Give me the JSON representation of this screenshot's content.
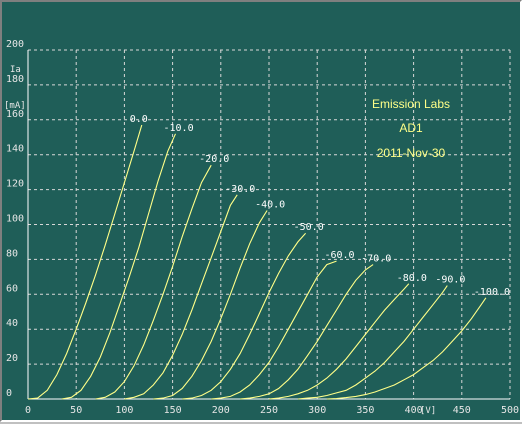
{
  "chart_data": {
    "type": "line",
    "xlim": [
      0,
      500
    ],
    "ylim": [
      0,
      200
    ],
    "x_ticks": [
      0,
      50,
      100,
      150,
      200,
      250,
      300,
      350,
      400,
      450,
      500
    ],
    "y_ticks": [
      0,
      20,
      40,
      60,
      80,
      100,
      120,
      140,
      160,
      180,
      200
    ],
    "x_unit": "[V]",
    "y_name": "Ia",
    "y_unit": "[mA]",
    "grid": true,
    "annotations": [
      "Emission Labs",
      "AD1",
      "2011-Nov-30"
    ],
    "series": [
      {
        "name": "0.0",
        "points": [
          [
            0,
            0
          ],
          [
            10,
            0.5
          ],
          [
            20,
            5
          ],
          [
            30,
            14
          ],
          [
            40,
            26
          ],
          [
            50,
            40
          ],
          [
            60,
            55
          ],
          [
            70,
            71
          ],
          [
            80,
            88
          ],
          [
            90,
            106
          ],
          [
            100,
            124
          ],
          [
            110,
            142
          ],
          [
            118,
            157
          ]
        ]
      },
      {
        "name": "-10.0",
        "points": [
          [
            35,
            0
          ],
          [
            45,
            1
          ],
          [
            55,
            5
          ],
          [
            65,
            13
          ],
          [
            75,
            24
          ],
          [
            85,
            38
          ],
          [
            95,
            54
          ],
          [
            105,
            70
          ],
          [
            115,
            87
          ],
          [
            125,
            106
          ],
          [
            135,
            125
          ],
          [
            145,
            142
          ],
          [
            153,
            152
          ]
        ]
      },
      {
        "name": "-20.0",
        "points": [
          [
            70,
            0
          ],
          [
            80,
            1
          ],
          [
            90,
            4
          ],
          [
            100,
            10
          ],
          [
            110,
            19
          ],
          [
            120,
            31
          ],
          [
            130,
            45
          ],
          [
            140,
            60
          ],
          [
            150,
            76
          ],
          [
            160,
            93
          ],
          [
            170,
            109
          ],
          [
            180,
            124
          ],
          [
            190,
            134
          ]
        ]
      },
      {
        "name": "-30.0",
        "points": [
          [
            100,
            0
          ],
          [
            110,
            1
          ],
          [
            120,
            3
          ],
          [
            130,
            8
          ],
          [
            140,
            15
          ],
          [
            150,
            25
          ],
          [
            160,
            37
          ],
          [
            170,
            51
          ],
          [
            180,
            66
          ],
          [
            190,
            81
          ],
          [
            200,
            96
          ],
          [
            210,
            111
          ],
          [
            217,
            117
          ]
        ]
      },
      {
        "name": "-40.0",
        "points": [
          [
            130,
            0
          ],
          [
            140,
            0.5
          ],
          [
            150,
            2
          ],
          [
            160,
            6
          ],
          [
            170,
            13
          ],
          [
            180,
            22
          ],
          [
            190,
            33
          ],
          [
            200,
            46
          ],
          [
            210,
            60
          ],
          [
            220,
            75
          ],
          [
            230,
            89
          ],
          [
            240,
            101
          ],
          [
            248,
            108
          ]
        ]
      },
      {
        "name": "-50.0",
        "points": [
          [
            160,
            0
          ],
          [
            170,
            0.5
          ],
          [
            180,
            2
          ],
          [
            190,
            5
          ],
          [
            200,
            10
          ],
          [
            210,
            17
          ],
          [
            220,
            26
          ],
          [
            230,
            37
          ],
          [
            240,
            49
          ],
          [
            250,
            61
          ],
          [
            260,
            72
          ],
          [
            270,
            82
          ],
          [
            280,
            90
          ],
          [
            288,
            95
          ]
        ]
      },
      {
        "name": "-60.0",
        "points": [
          [
            190,
            0
          ],
          [
            200,
            0.5
          ],
          [
            210,
            1.5
          ],
          [
            220,
            4
          ],
          [
            230,
            8
          ],
          [
            240,
            14
          ],
          [
            250,
            21
          ],
          [
            260,
            30
          ],
          [
            270,
            40
          ],
          [
            280,
            50
          ],
          [
            290,
            60
          ],
          [
            300,
            70
          ],
          [
            310,
            77
          ],
          [
            320,
            79
          ]
        ]
      },
      {
        "name": "-70.0",
        "points": [
          [
            220,
            0
          ],
          [
            230,
            0.5
          ],
          [
            240,
            1.5
          ],
          [
            250,
            3
          ],
          [
            260,
            6
          ],
          [
            270,
            11
          ],
          [
            280,
            17
          ],
          [
            290,
            25
          ],
          [
            300,
            33
          ],
          [
            310,
            42
          ],
          [
            320,
            51
          ],
          [
            330,
            60
          ],
          [
            340,
            68
          ],
          [
            350,
            74
          ],
          [
            358,
            77
          ]
        ]
      },
      {
        "name": "-80.0",
        "points": [
          [
            250,
            0
          ],
          [
            260,
            0.5
          ],
          [
            270,
            1.5
          ],
          [
            280,
            3
          ],
          [
            290,
            5
          ],
          [
            300,
            8
          ],
          [
            310,
            12
          ],
          [
            320,
            17
          ],
          [
            330,
            23
          ],
          [
            340,
            30
          ],
          [
            350,
            37
          ],
          [
            360,
            44
          ],
          [
            370,
            51
          ],
          [
            380,
            57
          ],
          [
            390,
            63
          ],
          [
            395,
            66
          ]
        ]
      },
      {
        "name": "-90.0",
        "points": [
          [
            280,
            0
          ],
          [
            290,
            0.5
          ],
          [
            300,
            1
          ],
          [
            310,
            2
          ],
          [
            320,
            3.5
          ],
          [
            330,
            5
          ],
          [
            340,
            8
          ],
          [
            350,
            12
          ],
          [
            360,
            16
          ],
          [
            370,
            21
          ],
          [
            380,
            27
          ],
          [
            390,
            33
          ],
          [
            400,
            40
          ],
          [
            410,
            47
          ],
          [
            420,
            54
          ],
          [
            430,
            61
          ],
          [
            435,
            65
          ]
        ]
      },
      {
        "name": "-100.0",
        "points": [
          [
            310,
            0
          ],
          [
            320,
            0.3
          ],
          [
            330,
            0.8
          ],
          [
            340,
            1.5
          ],
          [
            350,
            2.5
          ],
          [
            360,
            4
          ],
          [
            370,
            6
          ],
          [
            380,
            8
          ],
          [
            390,
            11
          ],
          [
            400,
            14
          ],
          [
            410,
            18
          ],
          [
            420,
            22
          ],
          [
            430,
            27
          ],
          [
            440,
            33
          ],
          [
            450,
            39
          ],
          [
            460,
            46
          ],
          [
            470,
            54
          ],
          [
            475,
            58
          ]
        ]
      }
    ]
  }
}
